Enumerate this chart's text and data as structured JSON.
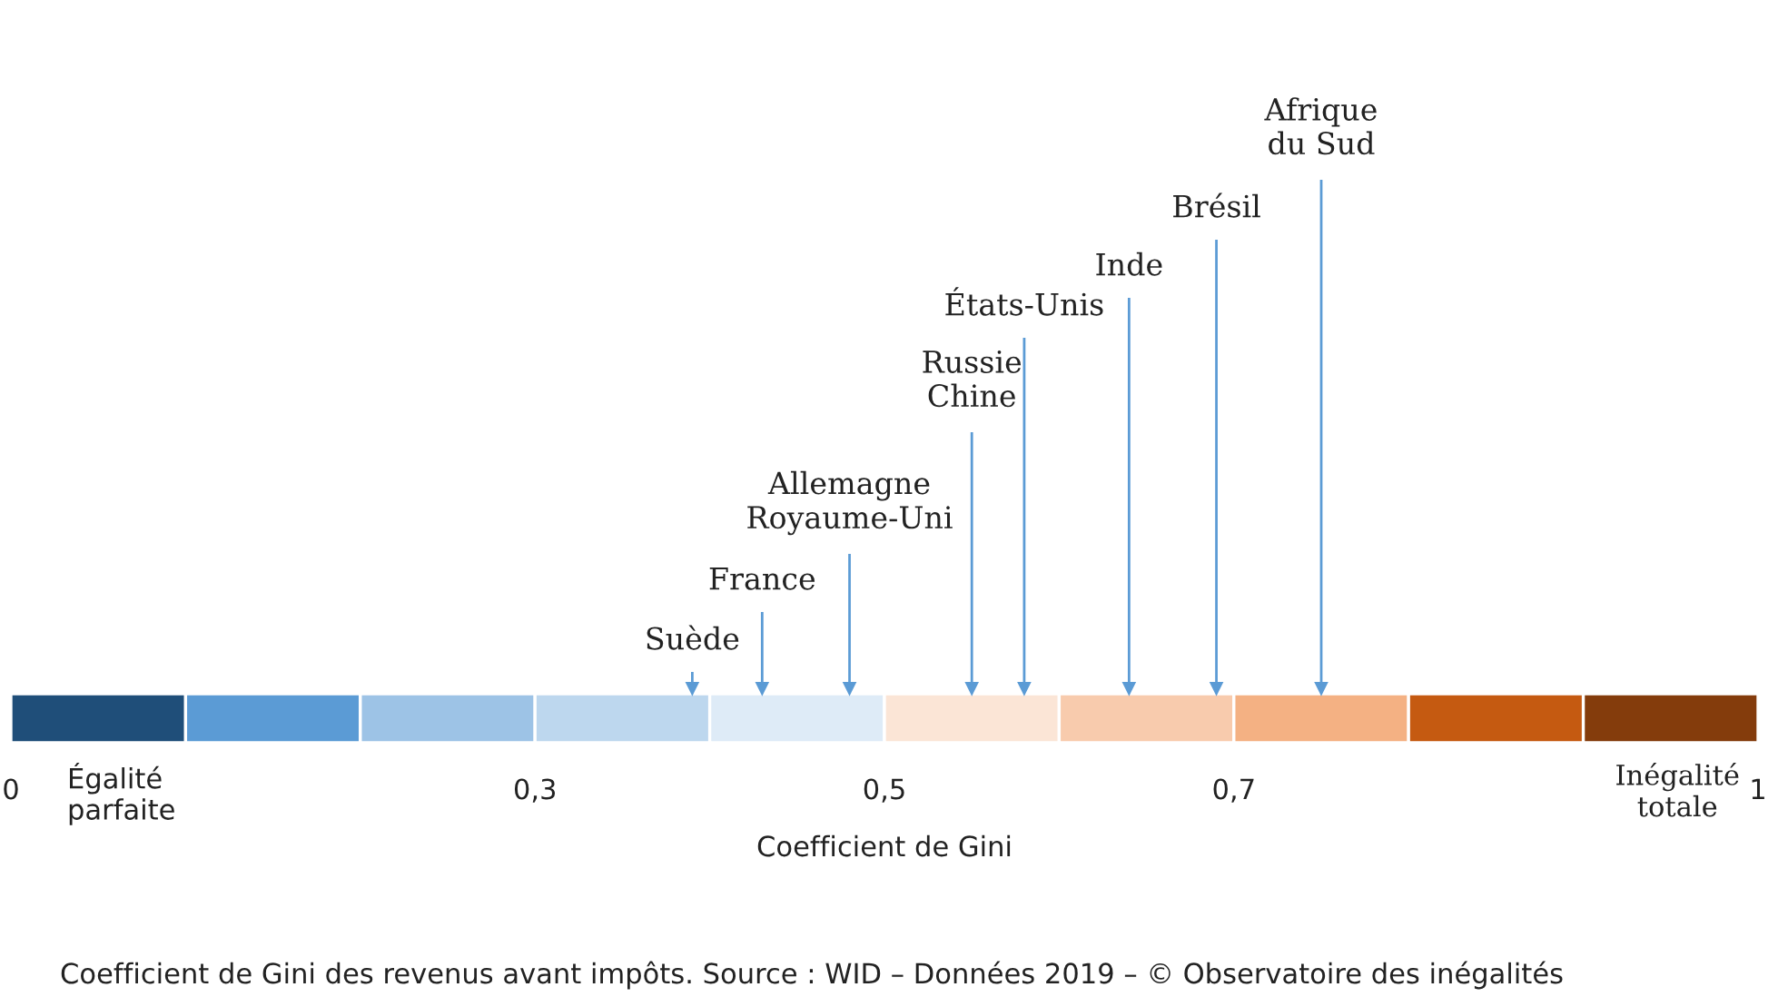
{
  "chart_data": {
    "type": "bar",
    "orientation": "horizontal",
    "stacked": true,
    "categories": [
      null
    ],
    "series": [
      {
        "color": "#1f4e79",
        "values": [
          0.1
        ]
      },
      {
        "color": "#5b9bd5",
        "values": [
          0.1
        ]
      },
      {
        "color": "#9dc3e6",
        "values": [
          0.1
        ]
      },
      {
        "color": "#bdd7ee",
        "values": [
          0.1
        ]
      },
      {
        "color": "#deebf7",
        "values": [
          0.1
        ]
      },
      {
        "color": "#fbe5d6",
        "values": [
          0.1
        ]
      },
      {
        "color": "#f8cbad",
        "values": [
          0.1
        ]
      },
      {
        "color": "#f4b183",
        "values": [
          0.1
        ]
      },
      {
        "color": "#c55a11",
        "values": [
          0.1
        ]
      },
      {
        "color": "#843c0c",
        "values": [
          0.1
        ]
      }
    ],
    "xlim": [
      0,
      1
    ],
    "xticks": [
      0,
      {
        "value": 0.3,
        "label": "0,3"
      },
      {
        "value": 0.5,
        "label": "0,5"
      },
      {
        "value": 0.7,
        "label": "0,7"
      },
      1
    ],
    "xlabel": "Coefficient de Gini",
    "tick_labels": "x",
    "grid": false,
    "legend": false,
    "ref_lines": [
      {
        "axis": "x",
        "value": 0.39,
        "label": "Suède",
        "color": "#5b9bd5"
      },
      {
        "axis": "x",
        "value": 0.43,
        "label": "France",
        "color": "#5b9bd5"
      },
      {
        "axis": "x",
        "value": 0.48,
        "label": "Allemagne\nRoyaume-Uni",
        "color": "#5b9bd5"
      },
      {
        "axis": "x",
        "value": 0.55,
        "label": "Russie\nChine",
        "color": "#5b9bd5"
      },
      {
        "axis": "x",
        "value": 0.58,
        "label": "États-Unis",
        "color": "#5b9bd5"
      },
      {
        "axis": "x",
        "value": 0.64,
        "label": "Inde",
        "color": "#5b9bd5"
      },
      {
        "axis": "x",
        "value": 0.69,
        "label": "Brésil",
        "color": "#5b9bd5"
      },
      {
        "axis": "x",
        "value": 0.75,
        "label": "Afrique\ndu Sud",
        "color": "#5b9bd5"
      }
    ],
    "annotations": [
      "Égalité\nparfaite",
      "Inégalité\ntotale",
      "Coefficient de Gini des revenus avant impôts. Source : WID – Données 2019 – © Observatoire des inégalités"
    ]
  }
}
